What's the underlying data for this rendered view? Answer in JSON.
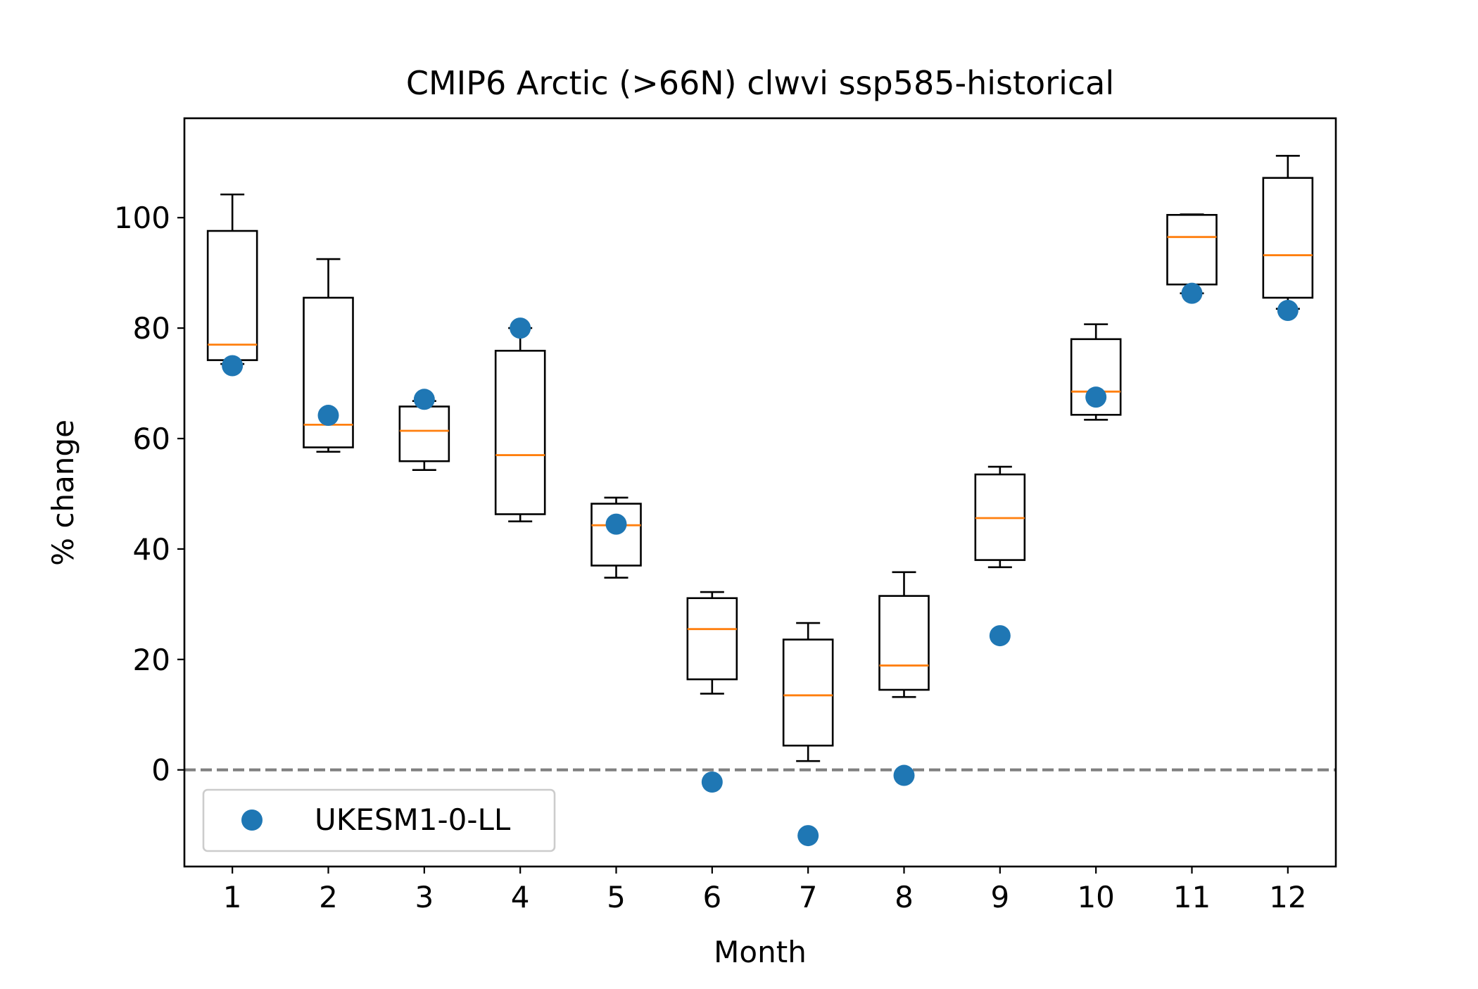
{
  "chart_data": {
    "type": "box",
    "title": "CMIP6 Arctic (>66N) clwvi ssp585-historical",
    "xlabel": "Month",
    "ylabel": "% change",
    "categories": [
      "1",
      "2",
      "3",
      "4",
      "5",
      "6",
      "7",
      "8",
      "9",
      "10",
      "11",
      "12"
    ],
    "x": [
      1,
      2,
      3,
      4,
      5,
      6,
      7,
      8,
      9,
      10,
      11,
      12
    ],
    "xlim": [
      0.5,
      12.5
    ],
    "ylim": [
      -17.5,
      118
    ],
    "yticks": [
      0,
      20,
      40,
      60,
      80,
      100
    ],
    "boxes": [
      {
        "x": 1,
        "whislo": 73.5,
        "q1": 74.2,
        "med": 77.0,
        "q3": 97.6,
        "whishi": 104.2
      },
      {
        "x": 2,
        "whislo": 57.6,
        "q1": 58.4,
        "med": 62.5,
        "q3": 85.5,
        "whishi": 92.5
      },
      {
        "x": 3,
        "whislo": 54.3,
        "q1": 55.9,
        "med": 61.4,
        "q3": 65.8,
        "whishi": 66.8
      },
      {
        "x": 4,
        "whislo": 45.0,
        "q1": 46.3,
        "med": 57.0,
        "q3": 75.9,
        "whishi": 80.0
      },
      {
        "x": 5,
        "whislo": 34.8,
        "q1": 37.0,
        "med": 44.3,
        "q3": 48.2,
        "whishi": 49.3
      },
      {
        "x": 6,
        "whislo": 13.8,
        "q1": 16.4,
        "med": 25.5,
        "q3": 31.1,
        "whishi": 32.2
      },
      {
        "x": 7,
        "whislo": 1.6,
        "q1": 4.4,
        "med": 13.5,
        "q3": 23.6,
        "whishi": 26.6
      },
      {
        "x": 8,
        "whislo": 13.2,
        "q1": 14.5,
        "med": 18.9,
        "q3": 31.5,
        "whishi": 35.8
      },
      {
        "x": 9,
        "whislo": 36.7,
        "q1": 38.0,
        "med": 45.6,
        "q3": 53.5,
        "whishi": 54.9
      },
      {
        "x": 10,
        "whislo": 63.4,
        "q1": 64.3,
        "med": 68.5,
        "q3": 78.0,
        "whishi": 80.7
      },
      {
        "x": 11,
        "whislo": 86.3,
        "q1": 87.9,
        "med": 96.5,
        "q3": 100.5,
        "whishi": 100.6
      },
      {
        "x": 12,
        "whislo": 83.5,
        "q1": 85.5,
        "med": 93.2,
        "q3": 107.2,
        "whishi": 111.2
      }
    ],
    "series": [
      {
        "name": "UKESM1-0-LL",
        "type": "scatter",
        "color": "#1f77b4",
        "x": [
          1,
          2,
          3,
          4,
          5,
          6,
          7,
          8,
          9,
          10,
          11,
          12
        ],
        "values": [
          73.2,
          64.2,
          67.1,
          80.0,
          44.5,
          -2.2,
          -11.9,
          -1.0,
          24.3,
          67.5,
          86.3,
          83.2
        ]
      }
    ],
    "reference_line": {
      "y": 0,
      "style": "dashed",
      "color": "#808080"
    },
    "box_color": "#000000",
    "median_color": "#ff7f0e",
    "grid": false,
    "legend": {
      "placement": "lower-left"
    }
  }
}
